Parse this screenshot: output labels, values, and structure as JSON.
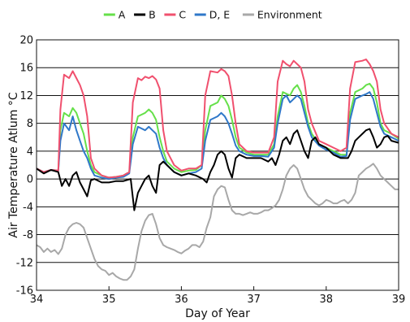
{
  "chart_data": {
    "type": "line",
    "xlabel": "Day of Year",
    "ylabel": "Air Temperature Atlum °C",
    "xlim": [
      34,
      39
    ],
    "ylim": [
      -16,
      20
    ],
    "xticks": [
      "34",
      "35",
      "36",
      "37",
      "38",
      "39"
    ],
    "yticks": [
      "-16",
      "-12",
      "-8",
      "-4",
      "0",
      "4",
      "8",
      "12",
      "16",
      "20"
    ],
    "grid": "horizontal",
    "legend_position": "top",
    "colors": {
      "A": "#66e04a",
      "B": "#000000",
      "C": "#f0506e",
      "DE": "#2f78c9",
      "Environment": "#a8a8a8"
    },
    "series": [
      {
        "name": "A",
        "x": [
          34.0,
          34.1,
          34.2,
          34.3,
          34.33,
          34.38,
          34.45,
          34.5,
          34.55,
          34.6,
          34.65,
          34.7,
          34.75,
          34.8,
          34.9,
          35.0,
          35.1,
          35.2,
          35.28,
          35.33,
          35.4,
          35.5,
          35.55,
          35.6,
          35.65,
          35.7,
          35.75,
          35.8,
          35.9,
          36.0,
          36.1,
          36.2,
          36.28,
          36.33,
          36.4,
          36.5,
          36.55,
          36.6,
          36.65,
          36.7,
          36.75,
          36.8,
          36.9,
          37.0,
          37.1,
          37.2,
          37.28,
          37.33,
          37.4,
          37.5,
          37.55,
          37.6,
          37.65,
          37.7,
          37.75,
          37.8,
          37.9,
          38.0,
          38.1,
          38.2,
          38.28,
          38.33,
          38.4,
          38.5,
          38.55,
          38.6,
          38.65,
          38.7,
          38.75,
          38.8,
          38.9,
          39.0
        ],
        "y": [
          1.5,
          1.0,
          1.3,
          1.2,
          7.0,
          9.5,
          9.0,
          10.2,
          9.5,
          8.0,
          6.5,
          4.0,
          2.0,
          1.0,
          0.5,
          0.2,
          0.3,
          0.5,
          1.0,
          6.0,
          9.0,
          9.5,
          10.0,
          9.5,
          8.5,
          6.0,
          4.0,
          2.5,
          1.5,
          1.0,
          1.2,
          1.3,
          2.0,
          7.0,
          10.5,
          11.0,
          12.0,
          11.5,
          10.5,
          8.5,
          6.0,
          4.5,
          3.8,
          3.5,
          3.5,
          3.5,
          5.0,
          9.0,
          12.5,
          12.0,
          13.0,
          13.5,
          12.5,
          10.5,
          8.0,
          6.5,
          5.0,
          4.5,
          4.0,
          3.5,
          3.5,
          9.5,
          12.5,
          13.0,
          13.5,
          13.7,
          13.0,
          11.0,
          8.0,
          7.0,
          6.5,
          5.8
        ]
      },
      {
        "name": "B",
        "x": [
          34.0,
          34.1,
          34.2,
          34.3,
          34.35,
          34.4,
          34.45,
          34.5,
          34.55,
          34.6,
          34.65,
          34.7,
          34.75,
          34.8,
          34.9,
          35.0,
          35.1,
          35.2,
          35.3,
          35.35,
          35.4,
          35.45,
          35.5,
          35.55,
          35.6,
          35.65,
          35.7,
          35.75,
          35.8,
          35.85,
          35.9,
          36.0,
          36.1,
          36.2,
          36.3,
          36.35,
          36.4,
          36.45,
          36.5,
          36.55,
          36.6,
          36.65,
          36.7,
          36.75,
          36.8,
          36.9,
          37.0,
          37.1,
          37.2,
          37.25,
          37.3,
          37.35,
          37.4,
          37.45,
          37.5,
          37.55,
          37.6,
          37.65,
          37.7,
          37.75,
          37.8,
          37.85,
          37.9,
          38.0,
          38.1,
          38.2,
          38.3,
          38.35,
          38.4,
          38.45,
          38.5,
          38.55,
          38.6,
          38.65,
          38.7,
          38.75,
          38.8,
          38.85,
          38.9,
          39.0
        ],
        "y": [
          1.5,
          0.8,
          1.3,
          1.0,
          -1.0,
          0.0,
          -1.0,
          0.5,
          1.0,
          -0.5,
          -1.5,
          -2.5,
          -0.2,
          0.0,
          -0.5,
          -0.5,
          -0.3,
          -0.3,
          0.0,
          -4.5,
          -2.0,
          -1.0,
          0.0,
          0.5,
          -1.0,
          -2.0,
          2.0,
          2.5,
          2.0,
          1.5,
          1.0,
          0.5,
          0.8,
          0.5,
          0.0,
          -0.5,
          1.0,
          2.0,
          3.5,
          4.0,
          3.5,
          1.5,
          0.2,
          3.0,
          3.5,
          3.0,
          3.0,
          3.0,
          2.5,
          3.0,
          2.0,
          3.5,
          5.5,
          6.0,
          5.0,
          6.5,
          7.0,
          5.5,
          4.0,
          3.0,
          5.5,
          6.0,
          5.0,
          4.5,
          3.5,
          3.0,
          3.0,
          4.0,
          5.5,
          6.0,
          6.5,
          7.0,
          7.2,
          6.0,
          4.5,
          5.0,
          6.0,
          6.2,
          5.5,
          5.2
        ]
      },
      {
        "name": "C",
        "x": [
          34.0,
          34.1,
          34.2,
          34.3,
          34.33,
          34.38,
          34.45,
          34.5,
          34.55,
          34.6,
          34.65,
          34.7,
          34.75,
          34.8,
          34.9,
          35.0,
          35.1,
          35.2,
          35.28,
          35.33,
          35.4,
          35.45,
          35.5,
          35.55,
          35.6,
          35.65,
          35.7,
          35.75,
          35.8,
          35.9,
          36.0,
          36.1,
          36.2,
          36.28,
          36.33,
          36.4,
          36.5,
          36.55,
          36.6,
          36.65,
          36.7,
          36.75,
          36.8,
          36.9,
          37.0,
          37.1,
          37.2,
          37.28,
          37.33,
          37.4,
          37.45,
          37.5,
          37.55,
          37.6,
          37.65,
          37.7,
          37.75,
          37.8,
          37.9,
          38.0,
          38.1,
          38.2,
          38.28,
          38.33,
          38.4,
          38.5,
          38.55,
          38.6,
          38.65,
          38.7,
          38.75,
          38.8,
          38.9,
          39.0
        ],
        "y": [
          1.5,
          1.0,
          1.3,
          1.2,
          10.0,
          15.0,
          14.5,
          15.5,
          14.5,
          13.5,
          12.0,
          9.0,
          3.0,
          1.5,
          0.5,
          0.2,
          0.3,
          0.5,
          1.0,
          11.0,
          14.5,
          14.2,
          14.7,
          14.5,
          14.8,
          14.3,
          13.0,
          7.0,
          4.0,
          2.0,
          1.2,
          1.5,
          1.5,
          2.0,
          12.0,
          15.5,
          15.3,
          15.8,
          15.5,
          14.8,
          12.0,
          8.0,
          5.0,
          4.0,
          3.8,
          3.8,
          3.8,
          6.0,
          14.0,
          17.0,
          16.5,
          16.2,
          17.0,
          16.5,
          16.0,
          14.0,
          10.0,
          8.0,
          5.5,
          5.0,
          4.5,
          4.0,
          4.5,
          13.0,
          16.8,
          17.0,
          17.2,
          16.5,
          15.5,
          14.0,
          10.0,
          8.0,
          6.5,
          6.0
        ]
      },
      {
        "name": "D, E",
        "x": [
          34.0,
          34.1,
          34.2,
          34.3,
          34.33,
          34.38,
          34.45,
          34.5,
          34.55,
          34.6,
          34.65,
          34.7,
          34.75,
          34.8,
          34.9,
          35.0,
          35.1,
          35.2,
          35.28,
          35.33,
          35.4,
          35.5,
          35.55,
          35.6,
          35.65,
          35.7,
          35.75,
          35.8,
          35.9,
          36.0,
          36.1,
          36.2,
          36.28,
          36.33,
          36.4,
          36.5,
          36.55,
          36.6,
          36.65,
          36.7,
          36.75,
          36.8,
          36.9,
          37.0,
          37.1,
          37.2,
          37.28,
          37.33,
          37.4,
          37.45,
          37.5,
          37.55,
          37.6,
          37.65,
          37.7,
          37.75,
          37.8,
          37.9,
          38.0,
          38.1,
          38.2,
          38.28,
          38.33,
          38.4,
          38.5,
          38.55,
          38.6,
          38.65,
          38.7,
          38.75,
          38.8,
          38.9,
          39.0
        ],
        "y": [
          1.5,
          1.0,
          1.3,
          1.2,
          5.5,
          8.0,
          7.0,
          9.0,
          7.0,
          5.5,
          4.0,
          3.0,
          1.5,
          0.5,
          0.2,
          0.0,
          0.2,
          0.3,
          0.8,
          5.0,
          7.5,
          7.0,
          7.5,
          7.0,
          6.5,
          4.5,
          3.0,
          2.0,
          1.0,
          0.5,
          0.8,
          1.0,
          1.5,
          5.5,
          8.5,
          9.0,
          9.5,
          9.0,
          8.0,
          6.5,
          4.8,
          4.0,
          3.5,
          3.3,
          3.3,
          3.2,
          4.5,
          8.0,
          11.5,
          12.0,
          11.0,
          11.5,
          12.0,
          11.5,
          9.5,
          7.5,
          6.0,
          4.8,
          4.2,
          3.8,
          3.2,
          3.3,
          8.5,
          11.5,
          12.0,
          12.2,
          12.5,
          11.5,
          9.5,
          7.5,
          6.5,
          6.0,
          5.5
        ]
      },
      {
        "name": "Environment",
        "x": [
          34.0,
          34.05,
          34.1,
          34.15,
          34.2,
          34.25,
          34.3,
          34.35,
          34.4,
          34.45,
          34.5,
          34.55,
          34.6,
          34.65,
          34.7,
          34.75,
          34.8,
          34.85,
          34.9,
          34.95,
          35.0,
          35.05,
          35.1,
          35.15,
          35.2,
          35.25,
          35.3,
          35.35,
          35.4,
          35.45,
          35.5,
          35.55,
          35.6,
          35.65,
          35.7,
          35.75,
          35.8,
          35.85,
          35.9,
          35.95,
          36.0,
          36.05,
          36.1,
          36.15,
          36.2,
          36.25,
          36.3,
          36.35,
          36.4,
          36.45,
          36.5,
          36.55,
          36.6,
          36.65,
          36.7,
          36.75,
          36.8,
          36.85,
          36.9,
          36.95,
          37.0,
          37.05,
          37.1,
          37.15,
          37.2,
          37.25,
          37.3,
          37.35,
          37.4,
          37.45,
          37.5,
          37.55,
          37.6,
          37.65,
          37.7,
          37.75,
          37.8,
          37.85,
          37.9,
          37.95,
          38.0,
          38.05,
          38.1,
          38.15,
          38.2,
          38.25,
          38.3,
          38.35,
          38.4,
          38.45,
          38.5,
          38.55,
          38.6,
          38.65,
          38.7,
          38.75,
          38.8,
          38.85,
          38.9,
          38.95,
          39.0
        ],
        "y": [
          -9.5,
          -9.8,
          -10.5,
          -10.0,
          -10.5,
          -10.2,
          -10.8,
          -10.0,
          -8.0,
          -7.0,
          -6.5,
          -6.3,
          -6.5,
          -7.0,
          -8.5,
          -10.0,
          -11.5,
          -12.5,
          -13.0,
          -13.2,
          -13.8,
          -13.5,
          -14.0,
          -14.3,
          -14.5,
          -14.5,
          -14.0,
          -13.0,
          -10.0,
          -7.5,
          -6.0,
          -5.2,
          -5.0,
          -6.5,
          -8.5,
          -9.5,
          -9.8,
          -10.0,
          -10.2,
          -10.5,
          -10.7,
          -10.3,
          -10.0,
          -9.5,
          -9.5,
          -9.8,
          -9.0,
          -7.0,
          -5.5,
          -2.5,
          -1.5,
          -1.0,
          -1.2,
          -3.0,
          -4.5,
          -5.0,
          -5.0,
          -5.2,
          -5.0,
          -4.8,
          -5.0,
          -5.0,
          -4.8,
          -4.5,
          -4.5,
          -4.2,
          -3.8,
          -3.0,
          -1.5,
          0.5,
          1.5,
          2.0,
          1.5,
          0.0,
          -1.5,
          -2.5,
          -3.0,
          -3.5,
          -3.8,
          -3.5,
          -3.0,
          -3.2,
          -3.5,
          -3.5,
          -3.2,
          -3.0,
          -3.5,
          -3.0,
          -2.0,
          0.5,
          1.0,
          1.5,
          1.8,
          2.2,
          1.5,
          0.5,
          0.0,
          -0.5,
          -1.0,
          -1.5,
          -1.5
        ]
      }
    ]
  }
}
